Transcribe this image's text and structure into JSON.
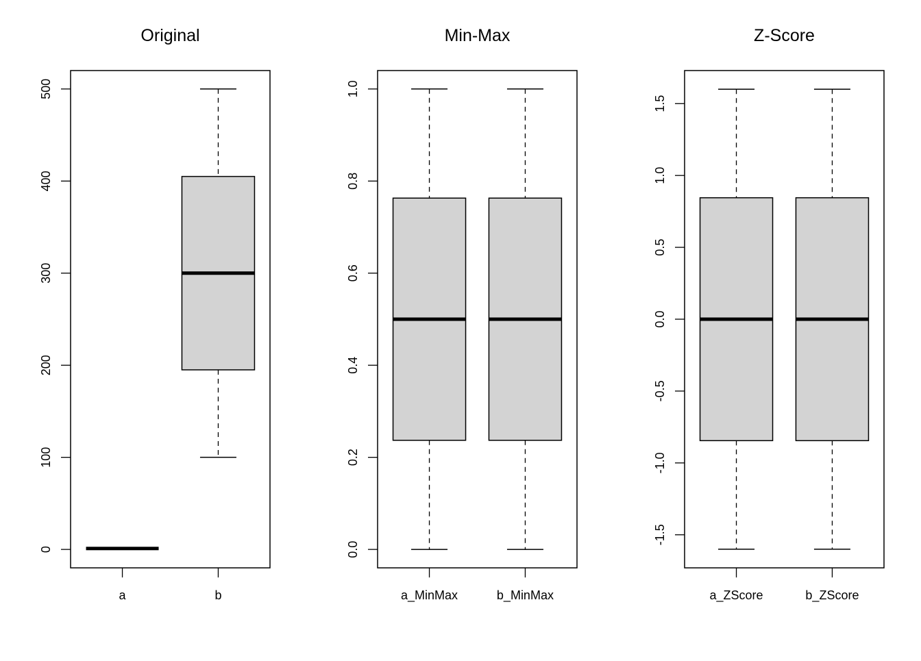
{
  "chart_data": [
    {
      "type": "box",
      "title": "Original",
      "ylim": [
        -20,
        520
      ],
      "yticks": [
        0,
        100,
        200,
        300,
        400,
        500
      ],
      "categories": [
        "a",
        "b"
      ],
      "boxes": [
        {
          "label": "a",
          "min": 1,
          "q1": 1,
          "median": 1,
          "q3": 1,
          "max": 1
        },
        {
          "label": "b",
          "min": 100,
          "q1": 195,
          "median": 300,
          "q3": 405,
          "max": 500
        }
      ]
    },
    {
      "type": "box",
      "title": "Min-Max",
      "ylim": [
        -0.04,
        1.04
      ],
      "yticks": [
        0.0,
        0.2,
        0.4,
        0.6,
        0.8,
        1.0
      ],
      "categories": [
        "a_MinMax",
        "b_MinMax"
      ],
      "boxes": [
        {
          "label": "a_MinMax",
          "min": 0.0,
          "q1": 0.237,
          "median": 0.5,
          "q3": 0.763,
          "max": 1.0
        },
        {
          "label": "b_MinMax",
          "min": 0.0,
          "q1": 0.237,
          "median": 0.5,
          "q3": 0.763,
          "max": 1.0
        }
      ]
    },
    {
      "type": "box",
      "title": "Z-Score",
      "ylim": [
        -1.73,
        1.73
      ],
      "yticks": [
        -1.5,
        -1.0,
        -0.5,
        0.0,
        0.5,
        1.0,
        1.5
      ],
      "categories": [
        "a_ZScore",
        "b_ZScore"
      ],
      "boxes": [
        {
          "label": "a_ZScore",
          "min": -1.6,
          "q1": -0.845,
          "median": 0.0,
          "q3": 0.845,
          "max": 1.6
        },
        {
          "label": "b_ZScore",
          "min": -1.6,
          "q1": -0.845,
          "median": 0.0,
          "q3": 0.845,
          "max": 1.6
        }
      ]
    }
  ],
  "colors": {
    "box_fill": "#d3d3d3",
    "stroke": "#000000",
    "background": "#ffffff"
  }
}
